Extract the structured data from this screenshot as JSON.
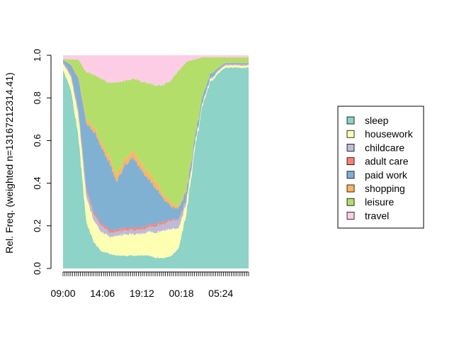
{
  "chart_data": {
    "type": "area",
    "stacked": true,
    "normalized": true,
    "ylabel": "Rel. Freq. (weighted n=13167212314.41)",
    "xlabel": "",
    "ylim": [
      0,
      1
    ],
    "yticks": [
      "0.0",
      "0.2",
      "0.4",
      "0.6",
      "0.8",
      "1.0"
    ],
    "xticklabels": [
      "09:00",
      "14:06",
      "19:12",
      "00:18",
      "05:24"
    ],
    "x_hours": [
      9,
      10,
      11,
      12,
      13,
      14,
      15,
      16,
      17,
      18,
      19,
      20,
      21,
      22,
      23,
      24,
      25,
      26,
      27,
      28,
      29,
      30,
      31,
      32,
      33
    ],
    "legend_position": "right",
    "series": [
      {
        "name": "sleep",
        "color": "#8DD3C7",
        "values": [
          0.93,
          0.86,
          0.62,
          0.22,
          0.12,
          0.08,
          0.07,
          0.06,
          0.06,
          0.06,
          0.06,
          0.06,
          0.05,
          0.05,
          0.06,
          0.1,
          0.27,
          0.55,
          0.76,
          0.88,
          0.92,
          0.95,
          0.95,
          0.95,
          0.95
        ]
      },
      {
        "name": "housework",
        "color": "#FFFFB3",
        "values": [
          0.03,
          0.06,
          0.1,
          0.12,
          0.1,
          0.09,
          0.08,
          0.09,
          0.1,
          0.1,
          0.1,
          0.11,
          0.12,
          0.13,
          0.13,
          0.09,
          0.05,
          0.02,
          0.01,
          0.01,
          0.01,
          0.01,
          0.01,
          0.01,
          0.01
        ]
      },
      {
        "name": "childcare",
        "color": "#BEBADA",
        "values": [
          0.005,
          0.01,
          0.02,
          0.03,
          0.03,
          0.03,
          0.02,
          0.02,
          0.02,
          0.02,
          0.02,
          0.02,
          0.03,
          0.03,
          0.04,
          0.04,
          0.01,
          0.005,
          0.005,
          0.005,
          0.005,
          0.005,
          0.005,
          0.005,
          0.005
        ]
      },
      {
        "name": "adult care",
        "color": "#FB8072",
        "values": [
          0.002,
          0.005,
          0.008,
          0.01,
          0.01,
          0.01,
          0.01,
          0.01,
          0.01,
          0.01,
          0.01,
          0.01,
          0.01,
          0.01,
          0.005,
          0.005,
          0.005,
          0.002,
          0.002,
          0.002,
          0.002,
          0.002,
          0.002,
          0.002,
          0.002
        ]
      },
      {
        "name": "paid work",
        "color": "#80B1D3",
        "values": [
          0.01,
          0.04,
          0.15,
          0.3,
          0.38,
          0.36,
          0.32,
          0.22,
          0.3,
          0.33,
          0.28,
          0.22,
          0.17,
          0.11,
          0.06,
          0.05,
          0.04,
          0.03,
          0.03,
          0.02,
          0.01,
          0.005,
          0.005,
          0.005,
          0.005
        ]
      },
      {
        "name": "shopping",
        "color": "#FDB462",
        "values": [
          0.001,
          0.005,
          0.01,
          0.02,
          0.02,
          0.02,
          0.03,
          0.03,
          0.03,
          0.03,
          0.03,
          0.03,
          0.03,
          0.02,
          0.02,
          0.01,
          0.01,
          0.005,
          0.002,
          0.001,
          0.001,
          0.001,
          0.001,
          0.001,
          0.001
        ]
      },
      {
        "name": "leisure",
        "color": "#B3DE69",
        "values": [
          0.005,
          0.02,
          0.08,
          0.22,
          0.25,
          0.3,
          0.35,
          0.44,
          0.36,
          0.34,
          0.38,
          0.41,
          0.45,
          0.51,
          0.58,
          0.65,
          0.58,
          0.37,
          0.19,
          0.08,
          0.05,
          0.025,
          0.025,
          0.025,
          0.025
        ]
      },
      {
        "name": "travel",
        "color": "#FCCDE5",
        "values": [
          0.017,
          0.02,
          0.02,
          0.08,
          0.09,
          0.11,
          0.13,
          0.13,
          0.12,
          0.11,
          0.12,
          0.13,
          0.14,
          0.14,
          0.12,
          0.07,
          0.03,
          0.02,
          0.01,
          0.01,
          0.01,
          0.01,
          0.01,
          0.01,
          0.01
        ]
      }
    ]
  }
}
